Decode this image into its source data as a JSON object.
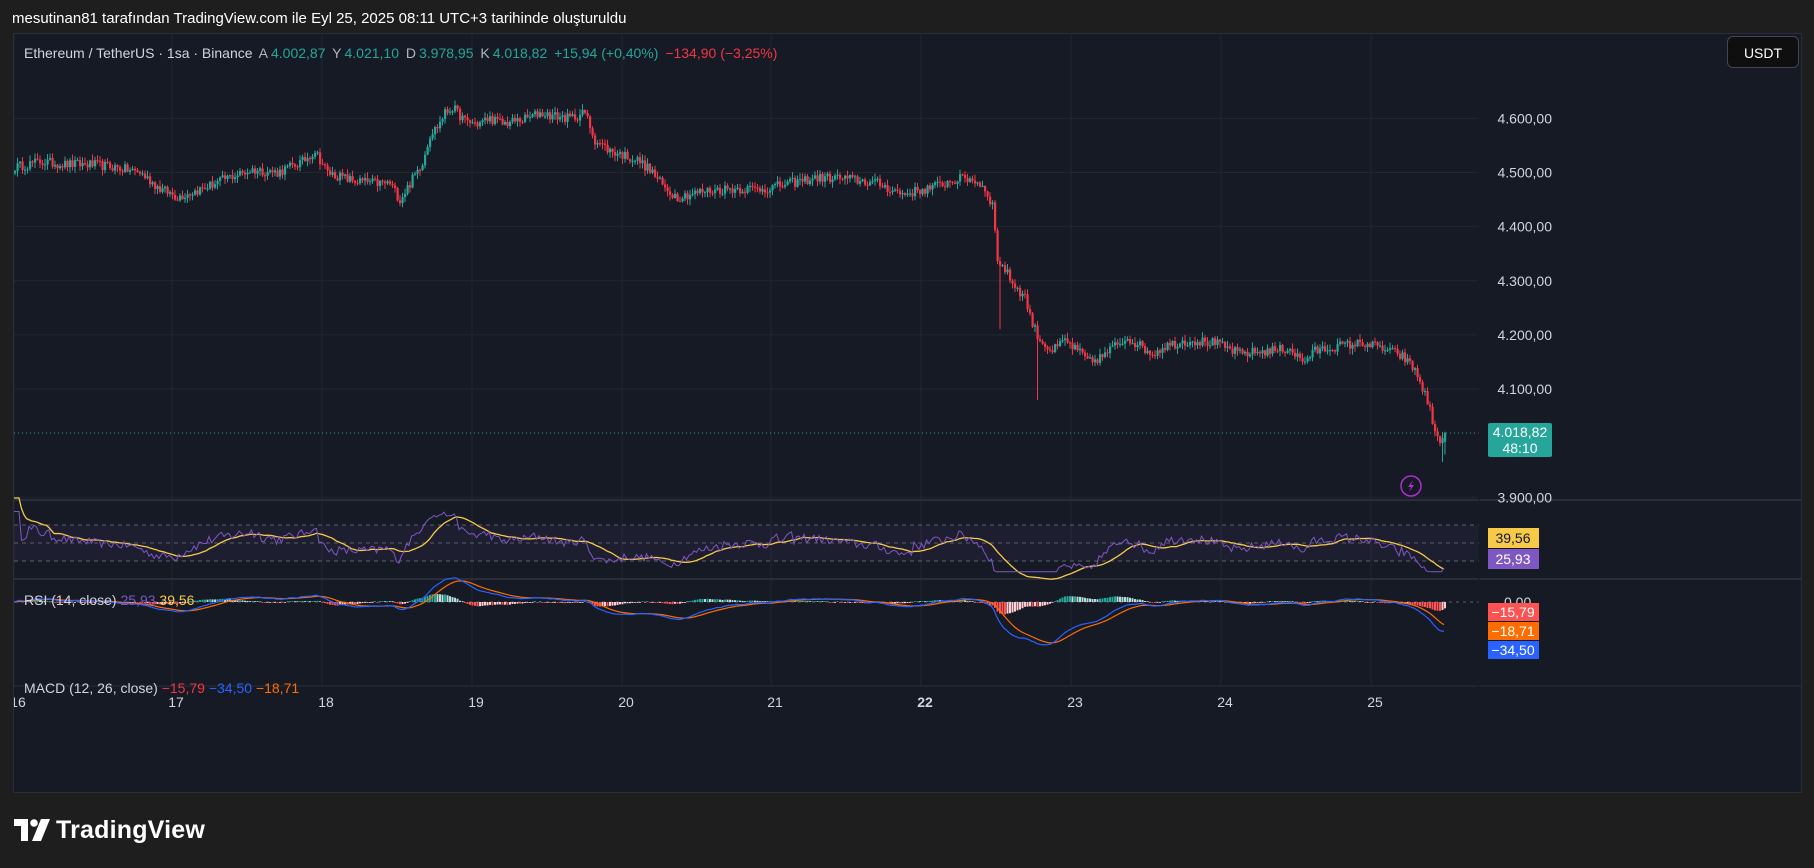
{
  "header": {
    "text": "mesutinan81 tarafından TradingView.com ile Eyl 25, 2025 08:11 UTC+3 tarihinde oluşturuldu"
  },
  "symbol": {
    "name": "Ethereum / TetherUS · 1sa · Binance",
    "o_label": "A",
    "o_value": "4.002,87",
    "h_label": "Y",
    "h_value": "4.021,10",
    "l_label": "D",
    "l_value": "3.978,95",
    "c_label": "K",
    "c_value": "4.018,82",
    "change": "+15,94 (+0,40%)",
    "change2": "−134,90 (−3,25%)"
  },
  "currency_button": "USDT",
  "price_axis": {
    "ticks": [
      "4.600,00",
      "4.500,00",
      "4.400,00",
      "4.300,00",
      "4.200,00",
      "4.100,00",
      "3.900,00"
    ],
    "last_price": "4.018,82",
    "countdown": "48:10"
  },
  "x_axis": {
    "ticks": [
      "16",
      "17",
      "18",
      "19",
      "20",
      "21",
      "22",
      "23",
      "24",
      "25"
    ]
  },
  "rsi": {
    "label": "RSI (14, close)",
    "value": "25,93",
    "ma_value": "39,56"
  },
  "macd": {
    "label": "MACD (12, 26, close)",
    "hist": "−15,79",
    "macd": "−34,50",
    "signal": "−18,71",
    "zero": "0,00"
  },
  "footer": {
    "brand": "TradingView"
  },
  "colors": {
    "up": "#26a69a",
    "down": "#f23645",
    "rsi_line": "#7e57c2",
    "rsi_ma": "#f7c948",
    "macd_line": "#2962ff",
    "signal_line": "#ff6d00",
    "background": "#161a25"
  },
  "chart_data": {
    "type": "candlestick",
    "title": "Ethereum / TetherUS · 1sa · Binance",
    "ylim": [
      3895,
      4645
    ],
    "x_tick_labels": [
      "16",
      "17",
      "18",
      "19",
      "20",
      "21",
      "22",
      "23",
      "24",
      "25"
    ],
    "last": 4018.82,
    "path": [
      [
        0,
        4510
      ],
      [
        10,
        4520
      ],
      [
        20,
        4515
      ],
      [
        30,
        4515
      ],
      [
        40,
        4510
      ],
      [
        50,
        4500
      ],
      [
        58,
        4470
      ],
      [
        65,
        4455
      ],
      [
        75,
        4470
      ],
      [
        85,
        4490
      ],
      [
        95,
        4505
      ],
      [
        105,
        4500
      ],
      [
        115,
        4520
      ],
      [
        120,
        4540
      ],
      [
        125,
        4500
      ],
      [
        135,
        4485
      ],
      [
        145,
        4480
      ],
      [
        150,
        4480
      ],
      [
        154,
        4450
      ],
      [
        158,
        4480
      ],
      [
        163,
        4520
      ],
      [
        166,
        4570
      ],
      [
        169,
        4585
      ],
      [
        172,
        4610
      ],
      [
        175,
        4620
      ],
      [
        180,
        4595
      ],
      [
        185,
        4590
      ],
      [
        190,
        4600
      ],
      [
        195,
        4590
      ],
      [
        200,
        4595
      ],
      [
        205,
        4600
      ],
      [
        210,
        4610
      ],
      [
        215,
        4605
      ],
      [
        222,
        4600
      ],
      [
        228,
        4610
      ],
      [
        232,
        4560
      ],
      [
        238,
        4540
      ],
      [
        245,
        4530
      ],
      [
        250,
        4520
      ],
      [
        255,
        4500
      ],
      [
        260,
        4470
      ],
      [
        265,
        4455
      ],
      [
        275,
        4465
      ],
      [
        285,
        4470
      ],
      [
        300,
        4470
      ],
      [
        310,
        4480
      ],
      [
        320,
        4490
      ],
      [
        330,
        4490
      ],
      [
        345,
        4480
      ],
      [
        355,
        4460
      ],
      [
        365,
        4470
      ],
      [
        375,
        4485
      ],
      [
        380,
        4490
      ],
      [
        384,
        4485
      ],
      [
        388,
        4470
      ],
      [
        391,
        4440
      ],
      [
        393,
        4340
      ],
      [
        396,
        4320
      ],
      [
        400,
        4290
      ],
      [
        404,
        4270
      ],
      [
        407,
        4220
      ],
      [
        410,
        4190
      ],
      [
        415,
        4170
      ],
      [
        420,
        4190
      ],
      [
        425,
        4170
      ],
      [
        430,
        4150
      ],
      [
        435,
        4160
      ],
      [
        440,
        4180
      ],
      [
        445,
        4195
      ],
      [
        450,
        4180
      ],
      [
        455,
        4165
      ],
      [
        460,
        4180
      ],
      [
        470,
        4190
      ],
      [
        480,
        4185
      ],
      [
        490,
        4165
      ],
      [
        500,
        4170
      ],
      [
        510,
        4175
      ],
      [
        515,
        4150
      ],
      [
        520,
        4170
      ],
      [
        530,
        4180
      ],
      [
        540,
        4185
      ],
      [
        550,
        4170
      ],
      [
        555,
        4160
      ],
      [
        560,
        4135
      ],
      [
        564,
        4090
      ],
      [
        566,
        4060
      ],
      [
        568,
        4020
      ],
      [
        570,
        4000
      ],
      [
        572,
        4019
      ]
    ]
  }
}
